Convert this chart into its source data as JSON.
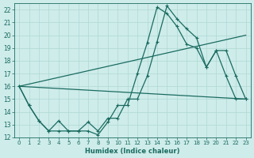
{
  "xlabel": "Humidex (Indice chaleur)",
  "bg_color": "#ceecea",
  "grid_color": "#aed8d4",
  "line_color": "#1a6b60",
  "xlim": [
    -0.5,
    23.5
  ],
  "ylim": [
    12,
    22.5
  ],
  "xticks": [
    0,
    1,
    2,
    3,
    4,
    5,
    6,
    7,
    8,
    9,
    10,
    11,
    12,
    13,
    14,
    15,
    16,
    17,
    18,
    19,
    20,
    21,
    22,
    23
  ],
  "yticks": [
    12,
    13,
    14,
    15,
    16,
    17,
    18,
    19,
    20,
    21,
    22
  ],
  "line1_x": [
    0,
    1,
    2,
    3,
    4,
    5,
    6,
    7,
    8,
    9,
    10,
    11,
    12,
    13,
    14,
    15,
    16,
    17,
    18,
    19,
    20,
    21,
    22,
    23
  ],
  "line1_y": [
    16.0,
    14.5,
    13.3,
    12.5,
    12.5,
    12.5,
    12.5,
    12.5,
    12.2,
    13.2,
    14.5,
    14.5,
    17.0,
    19.4,
    22.2,
    21.7,
    20.7,
    19.3,
    19.0,
    17.5,
    18.8,
    18.8,
    16.8,
    15.0
  ],
  "line2_x": [
    0,
    1,
    2,
    3,
    4,
    5,
    6,
    7,
    8,
    9,
    10,
    11,
    12,
    13,
    14,
    15,
    16,
    17,
    18,
    19,
    20,
    21,
    22,
    23
  ],
  "line2_y": [
    16.0,
    14.5,
    13.3,
    12.5,
    13.3,
    12.5,
    12.5,
    13.2,
    12.5,
    13.5,
    13.5,
    15.0,
    15.0,
    16.8,
    19.5,
    22.3,
    21.3,
    20.5,
    19.8,
    17.5,
    18.8,
    16.8,
    15.0,
    15.0
  ],
  "line3_x": [
    0,
    23
  ],
  "line3_y": [
    16.0,
    15.0
  ],
  "line4_x": [
    0,
    23
  ],
  "line4_y": [
    16.0,
    20.0
  ],
  "marker": "+"
}
